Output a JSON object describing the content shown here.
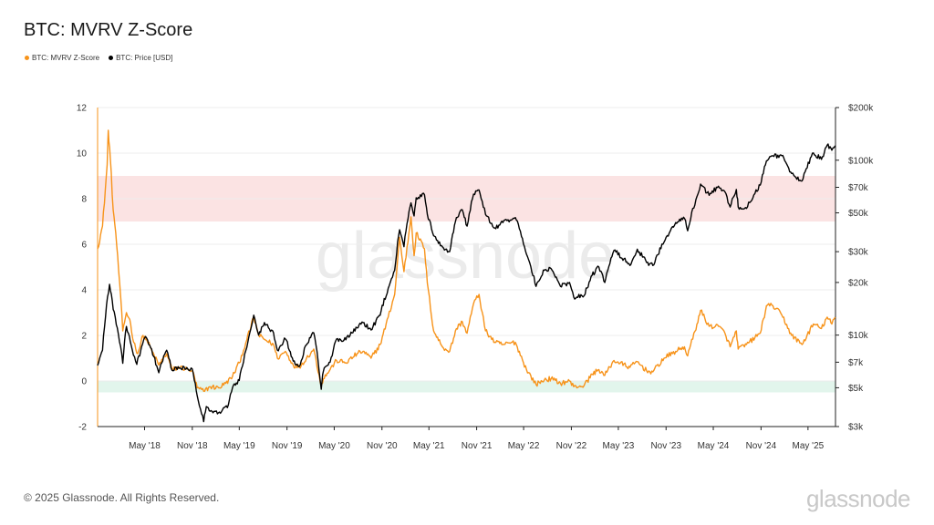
{
  "title": "BTC: MVRV Z-Score",
  "legend": [
    {
      "label": "BTC: MVRV Z-Score",
      "color": "#f7931a"
    },
    {
      "label": "BTC: Price [USD]",
      "color": "#000000"
    }
  ],
  "watermark": "glassnode",
  "footer": "© 2025 Glassnode. All Rights Reserved.",
  "brand": "glassnode",
  "chart_data": {
    "type": "line",
    "title": "BTC: MVRV Z-Score",
    "x_range": [
      "2017-11-01",
      "2025-08-15"
    ],
    "x_ticks": [
      {
        "label": "May '18",
        "date": "2018-05-01"
      },
      {
        "label": "Nov '18",
        "date": "2018-11-01"
      },
      {
        "label": "May '19",
        "date": "2019-05-01"
      },
      {
        "label": "Nov '19",
        "date": "2019-11-01"
      },
      {
        "label": "May '20",
        "date": "2020-05-01"
      },
      {
        "label": "Nov '20",
        "date": "2020-11-01"
      },
      {
        "label": "May '21",
        "date": "2021-05-01"
      },
      {
        "label": "Nov '21",
        "date": "2021-11-01"
      },
      {
        "label": "May '22",
        "date": "2022-05-01"
      },
      {
        "label": "Nov '22",
        "date": "2022-11-01"
      },
      {
        "label": "May '23",
        "date": "2023-05-01"
      },
      {
        "label": "Nov '23",
        "date": "2023-11-01"
      },
      {
        "label": "May '24",
        "date": "2024-05-01"
      },
      {
        "label": "Nov '24",
        "date": "2024-11-01"
      },
      {
        "label": "May '25",
        "date": "2025-05-01"
      }
    ],
    "y_left": {
      "range": [
        -2,
        12
      ],
      "ticks": [
        12,
        10,
        8,
        6,
        4,
        2,
        0,
        -2
      ]
    },
    "y_right": {
      "scale": "log",
      "range": [
        3000,
        200000
      ],
      "ticks": [
        {
          "label": "$200k",
          "value": 200000
        },
        {
          "label": "$100k",
          "value": 100000
        },
        {
          "label": "$70k",
          "value": 70000
        },
        {
          "label": "$50k",
          "value": 50000
        },
        {
          "label": "$30k",
          "value": 30000
        },
        {
          "label": "$20k",
          "value": 20000
        },
        {
          "label": "$10k",
          "value": 10000
        },
        {
          "label": "$7k",
          "value": 7000
        },
        {
          "label": "$5k",
          "value": 5000
        },
        {
          "label": "$3k",
          "value": 3000
        }
      ]
    },
    "bands": [
      {
        "y_from": 7,
        "y_to": 9,
        "color": "#fbe3e3"
      },
      {
        "y_from": -0.5,
        "y_to": 0,
        "color": "#e2f5ec"
      }
    ],
    "series": [
      {
        "name": "BTC: MVRV Z-Score",
        "axis": "left",
        "color": "#f7931a",
        "points": [
          [
            "2017-11-01",
            5.8
          ],
          [
            "2017-11-20",
            6.8
          ],
          [
            "2017-12-08",
            9.5
          ],
          [
            "2017-12-12",
            11.0
          ],
          [
            "2017-12-20",
            9.8
          ],
          [
            "2017-12-31",
            7.5
          ],
          [
            "2018-01-10",
            6.5
          ],
          [
            "2018-01-25",
            4.3
          ],
          [
            "2018-02-06",
            2.2
          ],
          [
            "2018-02-20",
            3.0
          ],
          [
            "2018-03-05",
            2.7
          ],
          [
            "2018-03-20",
            1.7
          ],
          [
            "2018-04-05",
            1.2
          ],
          [
            "2018-04-25",
            2.0
          ],
          [
            "2018-05-10",
            1.8
          ],
          [
            "2018-05-30",
            1.3
          ],
          [
            "2018-06-25",
            0.7
          ],
          [
            "2018-07-25",
            1.2
          ],
          [
            "2018-08-15",
            0.5
          ],
          [
            "2018-09-15",
            0.6
          ],
          [
            "2018-10-15",
            0.5
          ],
          [
            "2018-11-01",
            0.45
          ],
          [
            "2018-11-20",
            -0.3
          ],
          [
            "2018-12-15",
            -0.45
          ],
          [
            "2019-01-10",
            -0.25
          ],
          [
            "2019-02-10",
            -0.3
          ],
          [
            "2019-03-10",
            -0.1
          ],
          [
            "2019-04-05",
            0.2
          ],
          [
            "2019-05-01",
            0.8
          ],
          [
            "2019-05-30",
            1.8
          ],
          [
            "2019-06-26",
            2.8
          ],
          [
            "2019-07-15",
            2.0
          ],
          [
            "2019-08-10",
            1.8
          ],
          [
            "2019-09-10",
            1.6
          ],
          [
            "2019-09-25",
            1.0
          ],
          [
            "2019-10-26",
            1.3
          ],
          [
            "2019-11-25",
            0.7
          ],
          [
            "2019-12-18",
            0.6
          ],
          [
            "2020-01-15",
            1.0
          ],
          [
            "2020-02-12",
            1.4
          ],
          [
            "2020-03-12",
            -0.2
          ],
          [
            "2020-03-20",
            0.1
          ],
          [
            "2020-04-15",
            0.5
          ],
          [
            "2020-05-10",
            0.9
          ],
          [
            "2020-06-15",
            0.8
          ],
          [
            "2020-07-28",
            1.2
          ],
          [
            "2020-08-20",
            1.3
          ],
          [
            "2020-09-20",
            1.0
          ],
          [
            "2020-10-25",
            1.6
          ],
          [
            "2020-11-25",
            2.8
          ],
          [
            "2020-12-20",
            3.8
          ],
          [
            "2021-01-08",
            6.3
          ],
          [
            "2021-01-25",
            4.8
          ],
          [
            "2021-02-21",
            7.2
          ],
          [
            "2021-03-05",
            5.5
          ],
          [
            "2021-03-13",
            6.5
          ],
          [
            "2021-04-14",
            5.8
          ],
          [
            "2021-04-25",
            4.3
          ],
          [
            "2021-05-19",
            2.2
          ],
          [
            "2021-06-22",
            1.5
          ],
          [
            "2021-07-20",
            1.3
          ],
          [
            "2021-08-15",
            2.3
          ],
          [
            "2021-09-07",
            2.6
          ],
          [
            "2021-09-25",
            2.1
          ],
          [
            "2021-10-20",
            3.4
          ],
          [
            "2021-11-10",
            3.8
          ],
          [
            "2021-12-05",
            2.2
          ],
          [
            "2022-01-10",
            1.7
          ],
          [
            "2022-02-10",
            1.6
          ],
          [
            "2022-03-30",
            1.7
          ],
          [
            "2022-05-12",
            0.5
          ],
          [
            "2022-06-18",
            -0.15
          ],
          [
            "2022-07-20",
            0.05
          ],
          [
            "2022-08-15",
            0.1
          ],
          [
            "2022-09-20",
            -0.1
          ],
          [
            "2022-10-25",
            0.0
          ],
          [
            "2022-11-10",
            -0.25
          ],
          [
            "2022-12-20",
            -0.2
          ],
          [
            "2023-01-20",
            0.3
          ],
          [
            "2023-02-15",
            0.5
          ],
          [
            "2023-03-10",
            0.25
          ],
          [
            "2023-04-14",
            0.9
          ],
          [
            "2023-06-15",
            0.6
          ],
          [
            "2023-07-13",
            0.85
          ],
          [
            "2023-08-18",
            0.45
          ],
          [
            "2023-09-11",
            0.4
          ],
          [
            "2023-10-24",
            1.0
          ],
          [
            "2023-12-08",
            1.3
          ],
          [
            "2024-01-11",
            1.5
          ],
          [
            "2024-01-23",
            1.1
          ],
          [
            "2024-02-28",
            2.5
          ],
          [
            "2024-03-13",
            3.1
          ],
          [
            "2024-04-15",
            2.4
          ],
          [
            "2024-05-21",
            2.4
          ],
          [
            "2024-06-15",
            2.1
          ],
          [
            "2024-07-05",
            1.5
          ],
          [
            "2024-07-29",
            2.2
          ],
          [
            "2024-08-05",
            1.4
          ],
          [
            "2024-09-06",
            1.6
          ],
          [
            "2024-10-29",
            2.1
          ],
          [
            "2024-11-22",
            3.3
          ],
          [
            "2024-12-17",
            3.3
          ],
          [
            "2025-01-20",
            2.9
          ],
          [
            "2025-02-27",
            2.0
          ],
          [
            "2025-04-08",
            1.6
          ],
          [
            "2025-05-22",
            2.5
          ],
          [
            "2025-06-22",
            2.3
          ],
          [
            "2025-07-14",
            2.8
          ],
          [
            "2025-08-01",
            2.5
          ],
          [
            "2025-08-14",
            2.8
          ]
        ]
      },
      {
        "name": "BTC: Price [USD]",
        "axis": "right",
        "color": "#000000",
        "points": [
          [
            "2017-11-01",
            6700
          ],
          [
            "2017-11-20",
            8200
          ],
          [
            "2017-12-17",
            19500
          ],
          [
            "2017-12-31",
            14000
          ],
          [
            "2018-01-16",
            11000
          ],
          [
            "2018-02-06",
            6900
          ],
          [
            "2018-02-20",
            11200
          ],
          [
            "2018-03-15",
            8200
          ],
          [
            "2018-04-01",
            6800
          ],
          [
            "2018-05-05",
            9800
          ],
          [
            "2018-06-25",
            6100
          ],
          [
            "2018-07-25",
            8200
          ],
          [
            "2018-08-15",
            6300
          ],
          [
            "2018-09-15",
            6500
          ],
          [
            "2018-10-15",
            6400
          ],
          [
            "2018-11-01",
            6400
          ],
          [
            "2018-11-20",
            4500
          ],
          [
            "2018-12-15",
            3200
          ],
          [
            "2018-12-25",
            3900
          ],
          [
            "2019-01-20",
            3600
          ],
          [
            "2019-02-10",
            3600
          ],
          [
            "2019-03-20",
            4000
          ],
          [
            "2019-04-05",
            5000
          ],
          [
            "2019-05-01",
            5500
          ],
          [
            "2019-05-30",
            8500
          ],
          [
            "2019-06-26",
            13000
          ],
          [
            "2019-07-15",
            10000
          ],
          [
            "2019-08-06",
            11800
          ],
          [
            "2019-09-10",
            10300
          ],
          [
            "2019-09-25",
            8200
          ],
          [
            "2019-10-26",
            9500
          ],
          [
            "2019-11-25",
            7100
          ],
          [
            "2019-12-18",
            6600
          ],
          [
            "2020-01-15",
            8800
          ],
          [
            "2020-02-12",
            10300
          ],
          [
            "2020-03-12",
            4900
          ],
          [
            "2020-03-20",
            6200
          ],
          [
            "2020-04-15",
            7000
          ],
          [
            "2020-05-10",
            9500
          ],
          [
            "2020-06-15",
            9400
          ],
          [
            "2020-07-28",
            11000
          ],
          [
            "2020-08-20",
            11800
          ],
          [
            "2020-09-20",
            10700
          ],
          [
            "2020-10-25",
            13000
          ],
          [
            "2020-11-25",
            18500
          ],
          [
            "2020-12-20",
            23500
          ],
          [
            "2021-01-08",
            40000
          ],
          [
            "2021-01-25",
            32000
          ],
          [
            "2021-02-21",
            57000
          ],
          [
            "2021-03-05",
            48000
          ],
          [
            "2021-03-13",
            61000
          ],
          [
            "2021-04-14",
            63500
          ],
          [
            "2021-04-25",
            49000
          ],
          [
            "2021-05-19",
            37000
          ],
          [
            "2021-06-22",
            32000
          ],
          [
            "2021-07-20",
            30000
          ],
          [
            "2021-08-15",
            47000
          ],
          [
            "2021-09-07",
            52000
          ],
          [
            "2021-09-25",
            42000
          ],
          [
            "2021-10-20",
            64000
          ],
          [
            "2021-11-10",
            67500
          ],
          [
            "2021-12-05",
            49000
          ],
          [
            "2022-01-10",
            41000
          ],
          [
            "2022-02-10",
            44000
          ],
          [
            "2022-03-30",
            47000
          ],
          [
            "2022-05-12",
            29000
          ],
          [
            "2022-06-18",
            19000
          ],
          [
            "2022-07-20",
            23500
          ],
          [
            "2022-08-15",
            24000
          ],
          [
            "2022-09-20",
            19000
          ],
          [
            "2022-10-25",
            20000
          ],
          [
            "2022-11-10",
            16500
          ],
          [
            "2022-12-20",
            16800
          ],
          [
            "2023-01-20",
            22000
          ],
          [
            "2023-02-15",
            24500
          ],
          [
            "2023-03-10",
            20000
          ],
          [
            "2023-04-14",
            30500
          ],
          [
            "2023-06-15",
            25000
          ],
          [
            "2023-07-13",
            31000
          ],
          [
            "2023-08-18",
            26000
          ],
          [
            "2023-09-11",
            25000
          ],
          [
            "2023-10-24",
            34000
          ],
          [
            "2023-12-08",
            44000
          ],
          [
            "2024-01-11",
            46500
          ],
          [
            "2024-01-23",
            39500
          ],
          [
            "2024-02-28",
            62000
          ],
          [
            "2024-03-13",
            73000
          ],
          [
            "2024-04-15",
            63000
          ],
          [
            "2024-05-21",
            71000
          ],
          [
            "2024-06-15",
            66000
          ],
          [
            "2024-07-05",
            54000
          ],
          [
            "2024-07-29",
            68000
          ],
          [
            "2024-08-05",
            54000
          ],
          [
            "2024-09-06",
            53000
          ],
          [
            "2024-10-29",
            72000
          ],
          [
            "2024-11-22",
            99000
          ],
          [
            "2024-12-17",
            106000
          ],
          [
            "2025-01-20",
            106000
          ],
          [
            "2025-02-27",
            84000
          ],
          [
            "2025-04-08",
            76000
          ],
          [
            "2025-05-22",
            110000
          ],
          [
            "2025-06-22",
            101000
          ],
          [
            "2025-07-14",
            122000
          ],
          [
            "2025-08-01",
            114000
          ],
          [
            "2025-08-14",
            121000
          ]
        ]
      }
    ]
  }
}
